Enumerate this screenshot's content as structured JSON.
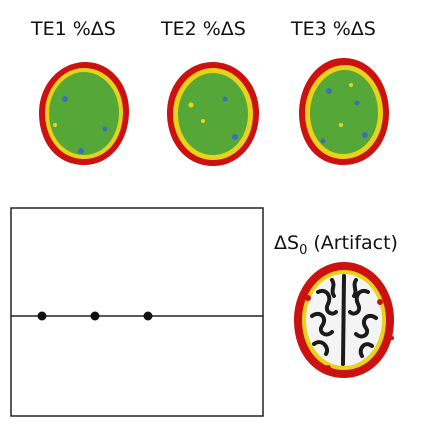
{
  "labels": {
    "te1": "TE1 %ΔS",
    "te2": "TE2 %ΔS",
    "te3": "TE3 %ΔS",
    "s0_prefix": "ΔS",
    "s0_sub": "0",
    "s0_suffix": " (Artifact)"
  },
  "icons": {
    "te1_map": "brain-map-icon",
    "te2_map": "brain-map-icon",
    "te3_map": "brain-map-icon",
    "s0_map": "brain-artifact-icon"
  },
  "colors": {
    "map_fill": "#55a838",
    "map_rim_yellow": "#e9d21a",
    "map_rim_red": "#cc1111",
    "map_speck_blue": "#3d6fb6",
    "plot_line": "#222222"
  },
  "plot": {
    "points": [
      1,
      2,
      3
    ]
  }
}
